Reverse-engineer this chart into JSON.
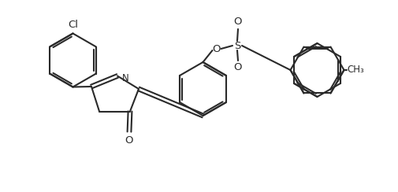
{
  "bg_color": "#ffffff",
  "line_color": "#2a2a2a",
  "line_width": 1.5,
  "fig_width": 5.06,
  "fig_height": 2.44,
  "dpi": 100,
  "xlim": [
    0,
    10.12
  ],
  "ylim": [
    0,
    4.88
  ]
}
